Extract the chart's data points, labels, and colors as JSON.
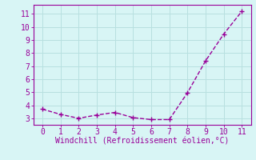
{
  "x": [
    0,
    1,
    2,
    3,
    4,
    5,
    6,
    7,
    8,
    9,
    10,
    11
  ],
  "y": [
    3.7,
    3.3,
    3.0,
    3.25,
    3.45,
    3.05,
    2.9,
    2.9,
    4.95,
    7.4,
    9.45,
    11.2
  ],
  "line_color": "#990099",
  "marker": "+",
  "marker_size": 4,
  "marker_linewidth": 1.0,
  "xlabel": "Windchill (Refroidissement éolien,°C)",
  "xlim": [
    -0.5,
    11.5
  ],
  "ylim": [
    2.5,
    11.7
  ],
  "xticks": [
    0,
    1,
    2,
    3,
    4,
    5,
    6,
    7,
    8,
    9,
    10,
    11
  ],
  "yticks": [
    3,
    4,
    5,
    6,
    7,
    8,
    9,
    10,
    11
  ],
  "background_color": "#d8f5f5",
  "grid_color": "#b8e0e0",
  "line_color_spine": "#990099",
  "tick_color": "#990099",
  "label_color": "#990099",
  "font_family": "monospace",
  "tick_labelsize": 7,
  "xlabel_fontsize": 7,
  "linewidth": 1.0,
  "linestyle": "--"
}
